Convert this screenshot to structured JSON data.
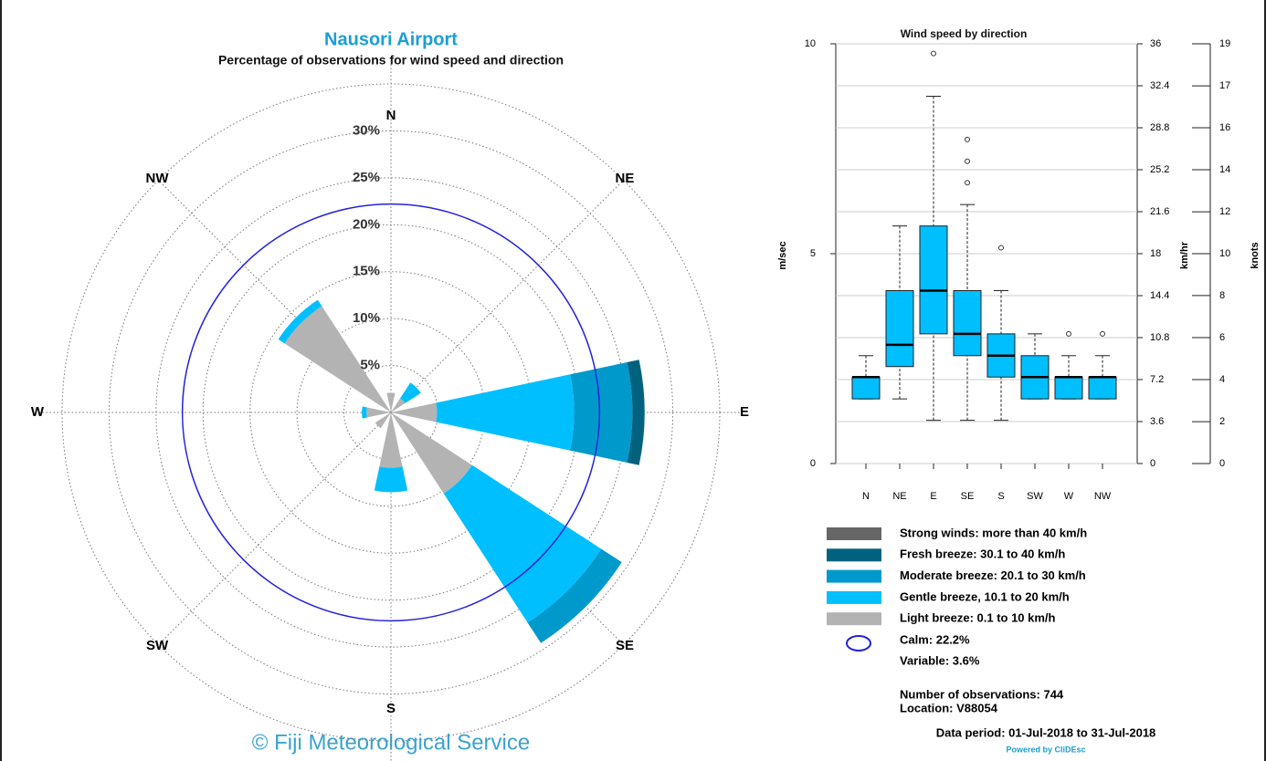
{
  "chart_data": [
    {
      "type": "windrose",
      "title": "Nausori Airport",
      "subtitle": "Percentage of observations for wind speed and direction",
      "categories": [
        "N",
        "NE",
        "E",
        "SE",
        "S",
        "SW",
        "W",
        "NW"
      ],
      "series": [
        {
          "name": "Strong winds: more than 40 km/h",
          "color": "#666666",
          "values": [
            0,
            0,
            0,
            0,
            0,
            0,
            0,
            0
          ]
        },
        {
          "name": "Fresh breeze: 30.1 to 40 km/h",
          "color": "#00627f",
          "values": [
            0,
            0,
            1.3,
            0,
            0,
            0,
            0,
            0
          ]
        },
        {
          "name": "Moderate breeze: 20.1 to 30 km/h",
          "color": "#0099cc",
          "values": [
            0,
            0,
            6.2,
            2.6,
            0,
            0,
            0,
            0
          ]
        },
        {
          "name": "Gentle breeze, 10.1 to 20 km/h",
          "color": "#00bfff",
          "values": [
            0,
            2.0,
            14.6,
            16.4,
            2.6,
            0,
            0.5,
            0.8
          ]
        },
        {
          "name": "Light breeze: 0.1 to 10 km/h",
          "color": "#b3b3b3",
          "values": [
            2.1,
            1.8,
            4.9,
            10.3,
            5.9,
            2.0,
            2.6,
            13.5
          ]
        }
      ],
      "rlim": [
        0,
        35
      ],
      "rticks": [
        {
          "value": 5,
          "label": "5%"
        },
        {
          "value": 10,
          "label": "10%"
        },
        {
          "value": 15,
          "label": "15%"
        },
        {
          "value": 20,
          "label": "20%"
        },
        {
          "value": 25,
          "label": "25%"
        },
        {
          "value": 30,
          "label": "30%"
        }
      ],
      "grid": true,
      "calm": {
        "label": "Calm: 22.2%",
        "value": 22.2,
        "color": "#2222dd"
      },
      "variable": "Variable: 3.6%"
    },
    {
      "type": "box",
      "title": "Wind speed by direction",
      "categories": [
        "N",
        "NE",
        "E",
        "SE",
        "S",
        "SW",
        "W",
        "NW"
      ],
      "color": "#00bfff",
      "ylabel": "m/sec",
      "ylim": [
        0,
        10
      ],
      "yticks": [
        0,
        5,
        10
      ],
      "y2label": "km/hr",
      "y2lim": [
        0,
        36
      ],
      "y2ticks": [
        0,
        3.6,
        7.2,
        10.8,
        14.4,
        18,
        21.6,
        25.2,
        28.8,
        32.4,
        36
      ],
      "y3label": "knots",
      "y3lim": [
        0,
        19.44
      ],
      "y3ticks": [
        0,
        {
          "value": 1.94,
          "label": "2"
        },
        {
          "value": 3.89,
          "label": "4"
        },
        {
          "value": 5.83,
          "label": "6"
        },
        {
          "value": 7.78,
          "label": "8"
        },
        {
          "value": 9.72,
          "label": "10"
        },
        {
          "value": 11.66,
          "label": "12"
        },
        {
          "value": 13.61,
          "label": "14"
        },
        {
          "value": 15.55,
          "label": "16"
        },
        {
          "value": 17.49,
          "label": "17"
        },
        {
          "value": 19.44,
          "label": "19"
        }
      ],
      "grid": true,
      "boxes": [
        {
          "low": 1.54,
          "q1": 1.54,
          "median": 2.06,
          "q3": 2.06,
          "high": 2.57,
          "outliers": []
        },
        {
          "low": 1.54,
          "q1": 2.31,
          "median": 2.83,
          "q3": 4.12,
          "high": 5.66,
          "outliers": []
        },
        {
          "low": 1.03,
          "q1": 3.09,
          "median": 4.12,
          "q3": 5.66,
          "high": 8.75,
          "outliers": [
            9.77
          ]
        },
        {
          "low": 1.03,
          "q1": 2.57,
          "median": 3.09,
          "q3": 4.12,
          "high": 6.17,
          "outliers": [
            6.69,
            7.2,
            7.72
          ]
        },
        {
          "low": 1.03,
          "q1": 2.06,
          "median": 2.57,
          "q3": 3.09,
          "high": 4.12,
          "outliers": [
            5.14
          ]
        },
        {
          "low": 1.54,
          "q1": 1.54,
          "median": 2.06,
          "q3": 2.57,
          "high": 3.09,
          "outliers": []
        },
        {
          "low": 1.54,
          "q1": 1.54,
          "median": 2.06,
          "q3": 2.06,
          "high": 2.57,
          "outliers": [
            3.09
          ]
        },
        {
          "low": 1.54,
          "q1": 1.54,
          "median": 2.06,
          "q3": 2.06,
          "high": 2.57,
          "outliers": [
            3.09
          ]
        }
      ]
    }
  ],
  "footer": "© Fiji Meteorological Service",
  "info": {
    "observations": "Number of observations:  744",
    "location": "Location:  V88054",
    "period": "Data period: 01-Jul-2018 to 31-Jul-2018",
    "powered": "Powered by CliDEsc"
  }
}
